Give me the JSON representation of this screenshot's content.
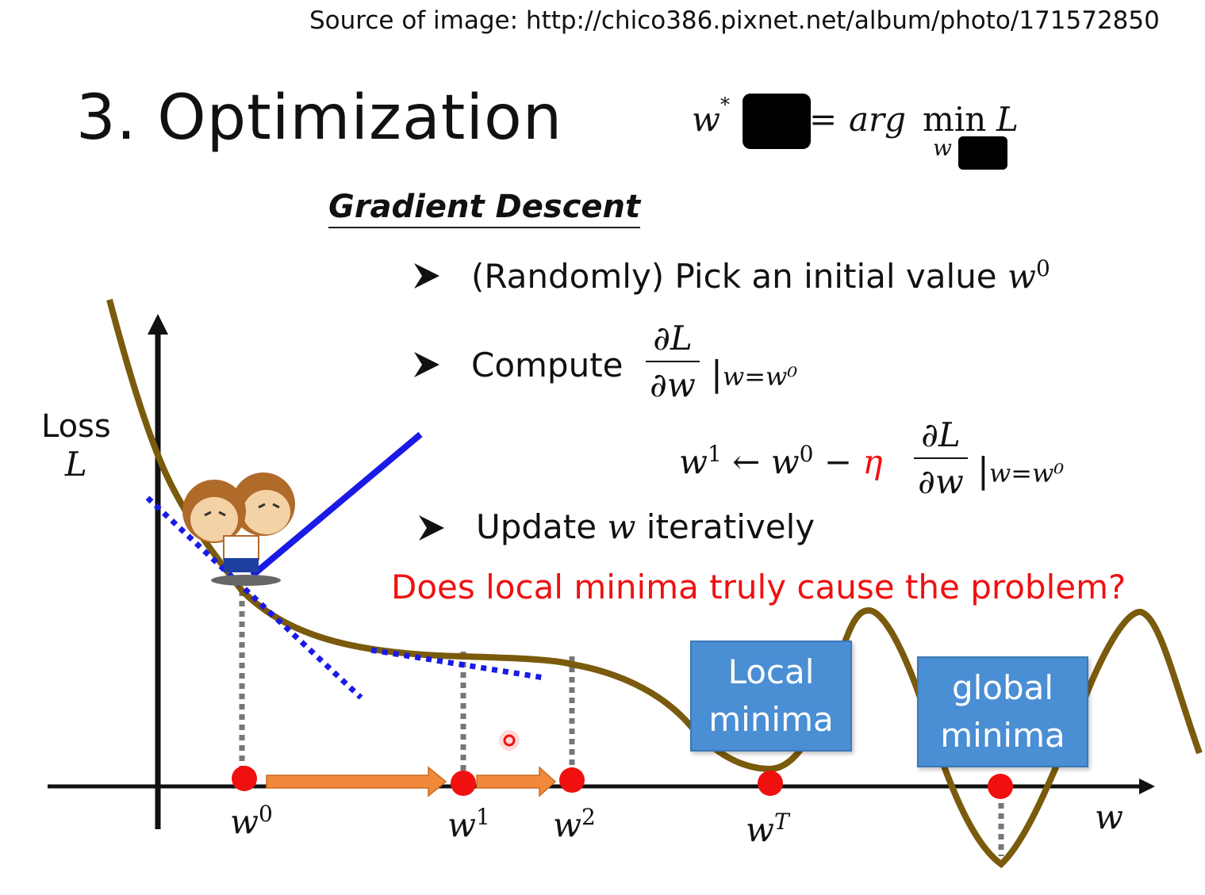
{
  "source_text": "Source of image: http://chico386.pixnet.net/album/photo/171572850",
  "title": "3. Optimization",
  "objective": {
    "lhs": "w",
    "lhs_sup": "*",
    "equals": "=",
    "arg": "arg",
    "min": "min",
    "min_sub": "w",
    "rhs": "L"
  },
  "section_title": "Gradient Descent",
  "bullets": [
    {
      "text": "(Randomly) Pick an initial value ",
      "math": "w",
      "sup": "0"
    },
    {
      "text": "Compute",
      "frac_num": "∂L",
      "frac_den": "∂w",
      "cond": "|",
      "cond_sub": "w=w⁰"
    },
    {
      "text": "Update ",
      "math": "w",
      "after": " iteratively"
    }
  ],
  "update_rule": {
    "lhs": "w",
    "lhs_sup": "1",
    "arrow": "←",
    "w0": "w",
    "w0_sup": "0",
    "minus": "−",
    "eta": "η",
    "frac_num": "∂L",
    "frac_den": "∂w",
    "cond": "|",
    "cond_sub": "w=w⁰"
  },
  "question": "Does local minima truly cause the problem?",
  "axis": {
    "y_label_line1": "Loss",
    "y_label_line2": "L",
    "x_label": "w"
  },
  "points": [
    {
      "name": "w",
      "sup": "0"
    },
    {
      "name": "w",
      "sup": "1"
    },
    {
      "name": "w",
      "sup": "2"
    },
    {
      "name": "w",
      "sup": "T"
    }
  ],
  "boxes": {
    "local_line1": "Local",
    "local_line2": "minima",
    "global_line1": "global",
    "global_line2": "minima"
  },
  "colors": {
    "curve": "#7a5a0c",
    "tangent": "#1a1ae6",
    "arrow": "#f08a3a",
    "point": "#f01010",
    "question": "#ee1111",
    "box": "#4a8ed4",
    "eta": "#ee1111"
  },
  "icons": [
    "bullet-arrow-icon",
    "monkey-character-icon"
  ]
}
